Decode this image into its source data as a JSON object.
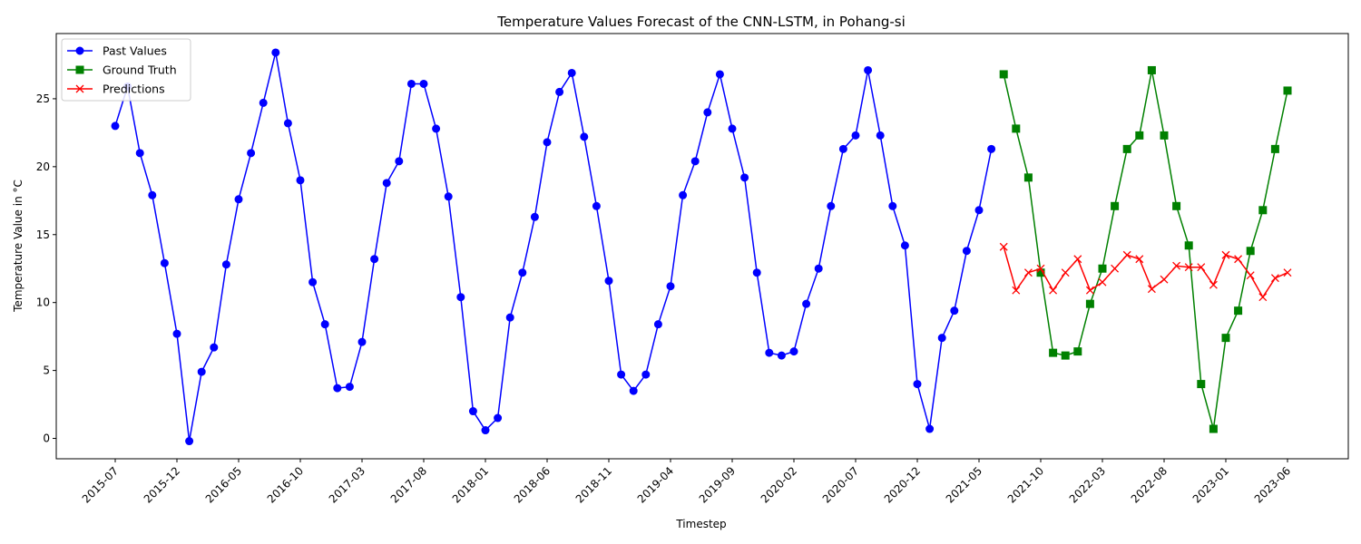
{
  "chart_data": {
    "type": "line",
    "title": "Temperature Values Forecast of the CNN-LSTM, in Pohang-si",
    "xlabel": "Timestep",
    "ylabel": "Temperature Value in °C",
    "ylim": [
      -1.5,
      29.8
    ],
    "yticks": [
      0,
      5,
      10,
      15,
      20,
      25
    ],
    "xticks": [
      "2015-07",
      "2015-12",
      "2016-05",
      "2016-10",
      "2017-03",
      "2017-08",
      "2018-01",
      "2018-06",
      "2018-11",
      "2019-04",
      "2019-09",
      "2020-02",
      "2020-07",
      "2020-12",
      "2021-05",
      "2021-10",
      "2022-03",
      "2022-08",
      "2023-01",
      "2023-06"
    ],
    "x_start": "2015-07",
    "legend_position": "upper-left",
    "grid": false,
    "series": [
      {
        "name": "Past Values",
        "color": "#0000ff",
        "marker": "circle",
        "start": "2015-07",
        "values": [
          23.0,
          25.9,
          21.0,
          17.9,
          12.9,
          7.7,
          -0.2,
          4.9,
          6.7,
          12.8,
          17.6,
          21.0,
          24.7,
          28.4,
          23.2,
          19.0,
          11.5,
          8.4,
          3.7,
          3.8,
          7.1,
          13.2,
          18.8,
          20.4,
          26.1,
          26.1,
          22.8,
          17.8,
          10.4,
          2.0,
          0.6,
          1.5,
          8.9,
          12.2,
          16.3,
          21.8,
          25.5,
          26.9,
          22.2,
          17.1,
          11.6,
          4.7,
          3.5,
          4.7,
          8.4,
          11.2,
          17.9,
          20.4,
          24.0,
          26.8,
          22.8,
          19.2,
          12.2,
          6.3,
          6.1,
          6.4,
          9.9,
          12.5,
          17.1,
          21.3,
          22.3,
          27.1,
          22.3,
          17.1,
          14.2,
          4.0,
          0.7,
          7.4,
          9.4,
          13.8,
          16.8,
          21.3
        ]
      },
      {
        "name": "Ground Truth",
        "color": "#008000",
        "marker": "square",
        "start": "2021-07",
        "values": [
          26.8,
          22.8,
          19.2,
          12.2,
          6.3,
          6.1,
          6.4,
          9.9,
          12.5,
          17.1,
          21.3,
          22.3,
          27.1,
          22.3,
          17.1,
          14.2,
          4.0,
          0.7,
          7.4,
          9.4,
          13.8,
          16.8,
          21.3,
          25.6
        ]
      },
      {
        "name": "Predictions",
        "color": "#ff0000",
        "marker": "x",
        "start": "2021-07",
        "values": [
          14.1,
          10.9,
          12.2,
          12.5,
          10.9,
          12.2,
          13.2,
          10.9,
          11.5,
          12.5,
          13.5,
          13.2,
          11.0,
          11.7,
          12.7,
          12.6,
          12.6,
          11.3,
          13.5,
          13.2,
          12.0,
          10.4,
          11.8,
          12.2
        ]
      }
    ]
  }
}
